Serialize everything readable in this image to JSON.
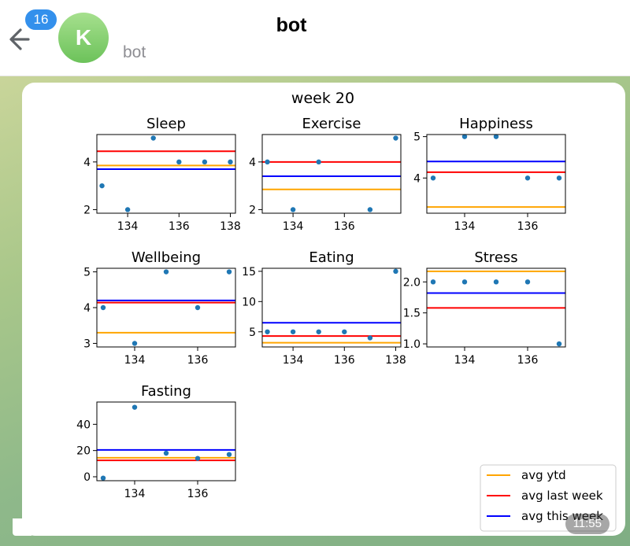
{
  "header": {
    "unread_count": "16",
    "avatar_letter": "K",
    "title": "bot",
    "subtitle": "bot"
  },
  "message": {
    "time": "11:55"
  },
  "figure": {
    "suptitle": "week 20",
    "legend": [
      {
        "label": "avg ytd",
        "color": "#ffa500"
      },
      {
        "label": "avg last week",
        "color": "#ff0000"
      },
      {
        "label": "avg this week",
        "color": "#0000ff"
      }
    ],
    "point_color": "#1f77b4"
  },
  "chart_data": [
    {
      "type": "scatter",
      "title": "Sleep",
      "x": [
        133,
        134,
        135,
        136,
        137,
        138
      ],
      "y": [
        3,
        2,
        5,
        4,
        4,
        4
      ],
      "xlim": [
        132.8,
        138.2
      ],
      "ylim": [
        1.85,
        5.15
      ],
      "xticks": [
        134,
        136,
        138
      ],
      "yticks": [
        2,
        4
      ],
      "avg_ytd": 3.85,
      "avg_last_week": 4.45,
      "avg_this_week": 3.7
    },
    {
      "type": "scatter",
      "title": "Exercise",
      "x": [
        133,
        134,
        135,
        137,
        138
      ],
      "y": [
        4,
        2,
        4,
        2,
        5
      ],
      "xlim": [
        132.8,
        138.2
      ],
      "ylim": [
        1.85,
        5.15
      ],
      "xticks": [
        134,
        136
      ],
      "yticks": [
        2,
        4
      ],
      "avg_ytd": 2.85,
      "avg_last_week": 4.0,
      "avg_this_week": 3.4
    },
    {
      "type": "scatter",
      "title": "Happiness",
      "x": [
        133,
        134,
        135,
        136,
        137
      ],
      "y": [
        4,
        5,
        5,
        4,
        4
      ],
      "xlim": [
        132.8,
        137.2
      ],
      "ylim": [
        3.15,
        5.05
      ],
      "xticks": [
        134,
        136
      ],
      "yticks": [
        4,
        5
      ],
      "avg_ytd": 3.3,
      "avg_last_week": 4.14,
      "avg_this_week": 4.4
    },
    {
      "type": "scatter",
      "title": "Wellbeing",
      "x": [
        133,
        134,
        135,
        136,
        137
      ],
      "y": [
        4,
        3,
        5,
        4,
        5
      ],
      "xlim": [
        132.8,
        137.2
      ],
      "ylim": [
        2.9,
        5.1
      ],
      "xticks": [
        134,
        136
      ],
      "yticks": [
        3,
        4,
        5
      ],
      "avg_ytd": 3.3,
      "avg_last_week": 4.14,
      "avg_this_week": 4.2
    },
    {
      "type": "scatter",
      "title": "Eating",
      "x": [
        133,
        134,
        135,
        136,
        137,
        138
      ],
      "y": [
        5,
        5,
        5,
        5,
        4,
        15
      ],
      "xlim": [
        132.8,
        138.2
      ],
      "ylim": [
        2.5,
        15.5
      ],
      "xticks": [
        134,
        136,
        138
      ],
      "yticks": [
        5,
        10,
        15
      ],
      "avg_ytd": 3.2,
      "avg_last_week": 4.3,
      "avg_this_week": 6.5
    },
    {
      "type": "scatter",
      "title": "Stress",
      "x": [
        133,
        134,
        135,
        136,
        137
      ],
      "y": [
        2,
        2,
        2,
        2,
        1
      ],
      "xlim": [
        132.8,
        137.2
      ],
      "ylim": [
        0.95,
        2.22
      ],
      "xticks": [
        134,
        136
      ],
      "yticks": [
        1.0,
        1.5,
        2.0
      ],
      "avg_ytd": 2.17,
      "avg_last_week": 1.58,
      "avg_this_week": 1.82
    },
    {
      "type": "scatter",
      "title": "Fasting",
      "x": [
        133,
        134,
        135,
        136,
        137
      ],
      "y": [
        -1,
        53,
        18,
        14,
        17
      ],
      "xlim": [
        132.8,
        137.2
      ],
      "ylim": [
        -3,
        57
      ],
      "xticks": [
        134,
        136
      ],
      "yticks": [
        0,
        20,
        40
      ],
      "avg_ytd": 14.5,
      "avg_last_week": 12.5,
      "avg_this_week": 20.5
    }
  ]
}
